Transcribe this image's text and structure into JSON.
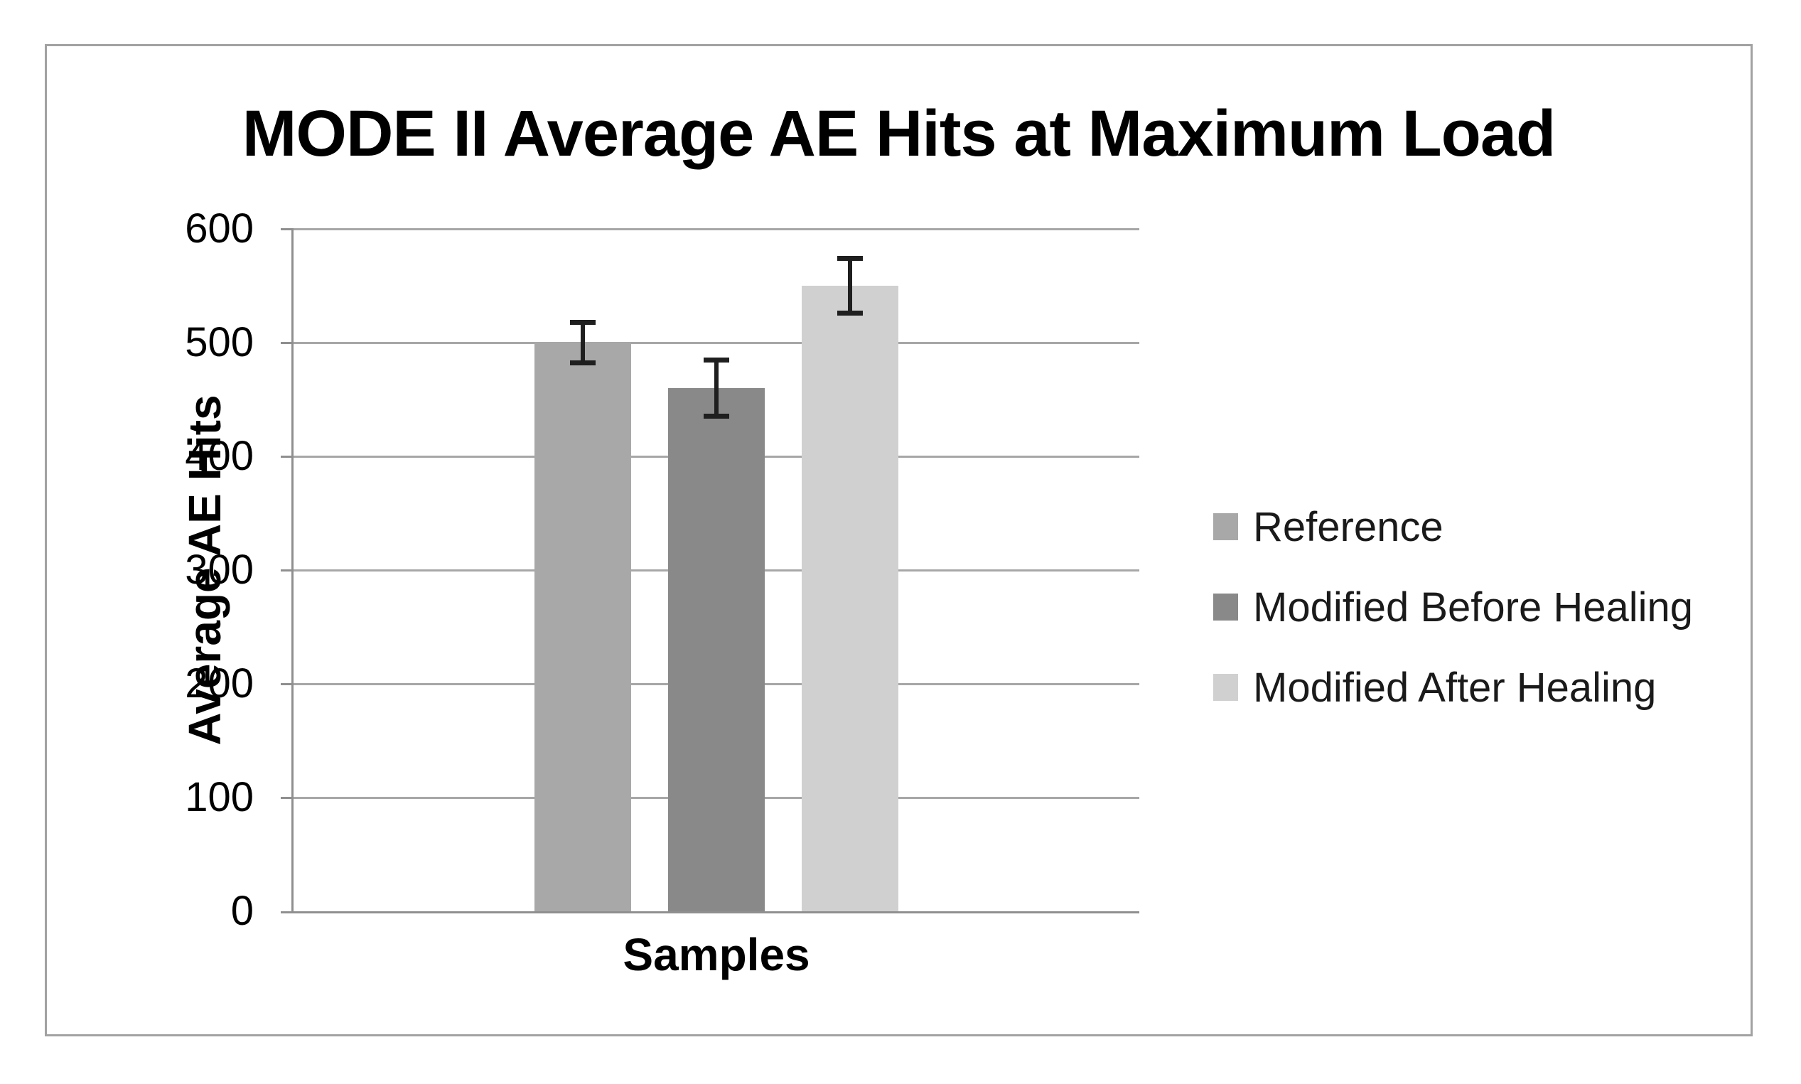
{
  "chart_data": {
    "type": "bar",
    "title": "MODE II Average AE Hits at Maximum Load",
    "xlabel": "Samples",
    "ylabel": "Average AE Hits",
    "ylim": [
      0,
      600
    ],
    "y_ticks": [
      0,
      100,
      200,
      300,
      400,
      500,
      600
    ],
    "grid": true,
    "legend_position": "right",
    "categories": [
      "Samples"
    ],
    "series": [
      {
        "name": "Reference",
        "value": 500,
        "error_minus": 20,
        "error_plus": 20,
        "color": "#a8a8a8"
      },
      {
        "name": "Modified Before Healing",
        "value": 460,
        "error_minus": 27,
        "error_plus": 27,
        "color": "#898989"
      },
      {
        "name": "Modified After Healing",
        "value": 550,
        "error_minus": 26,
        "error_plus": 26,
        "color": "#d0d0d0"
      }
    ],
    "colors": {
      "gridline": "#a7a7a7",
      "axis_line": "#8f8f8f",
      "error_bar": "#1f1f1f",
      "frame_border": "#a2a2a2",
      "text": "#000000",
      "background": "#ffffff"
    }
  }
}
